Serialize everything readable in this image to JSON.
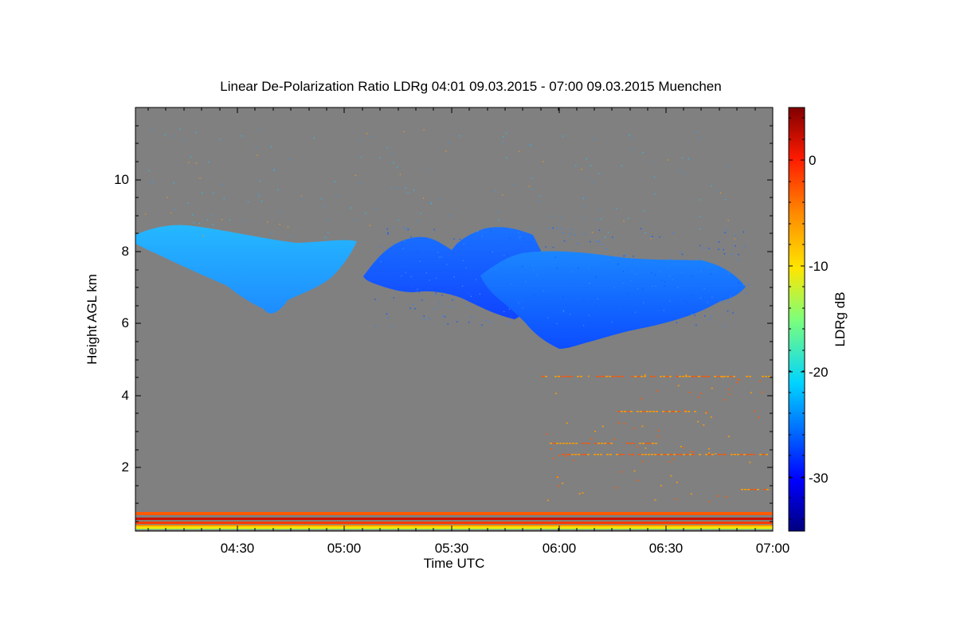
{
  "chart_data": {
    "type": "heatmap",
    "title": "Linear De-Polarization Ratio LDRg   04:01 09.03.2015 - 07:00 09.03.2015 Muenchen",
    "xlabel": "Time UTC",
    "ylabel": "Height AGL km",
    "xlim": [
      "04:01",
      "07:00"
    ],
    "ylim": [
      0.2,
      12.0
    ],
    "x_ticks": [
      "04:30",
      "05:00",
      "05:30",
      "06:00",
      "06:30",
      "07:00"
    ],
    "y_ticks": [
      2,
      4,
      6,
      8,
      10
    ],
    "background_color": "#808080",
    "colorbar": {
      "label": "LDRg dB",
      "range": [
        -35,
        5
      ],
      "ticks": [
        0,
        -10,
        -20,
        -30
      ],
      "colormap": "jet"
    }
  }
}
